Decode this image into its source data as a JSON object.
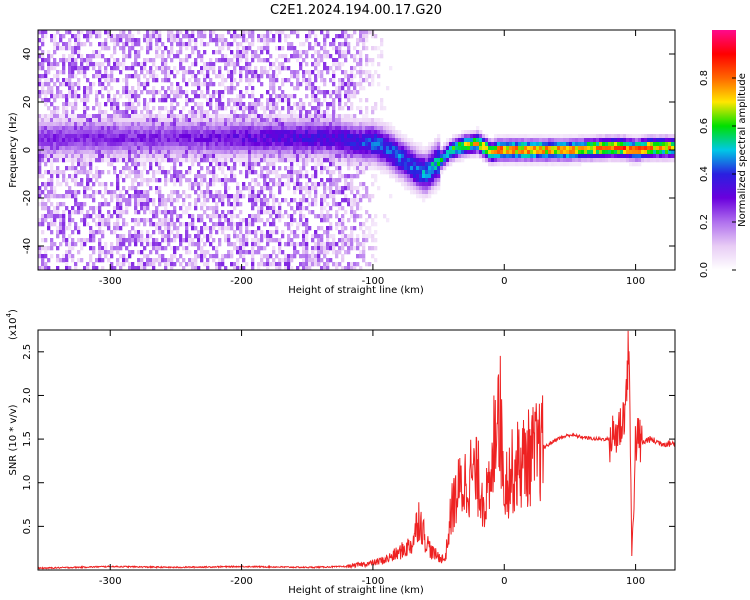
{
  "title": "C2E1.2024.194.00.17.G20",
  "chart_data": [
    {
      "type": "heatmap",
      "title": "C2E1.2024.194.00.17.G20",
      "xlabel": "Height of straight line (km)",
      "ylabel": "Frequency (Hz)",
      "xlim": [
        -355,
        130
      ],
      "ylim": [
        -50,
        50
      ],
      "x_ticks": [
        -300,
        -200,
        -100,
        0,
        100
      ],
      "y_ticks": [
        -40,
        -20,
        0,
        20,
        40
      ],
      "colorbar": {
        "label": "Normalized spectral amplitude",
        "ticks": [
          0.0,
          0.2,
          0.4,
          0.6,
          0.8
        ],
        "range": [
          0,
          1
        ],
        "colormap": [
          "#ffffff",
          "#e8ccf5",
          "#b070ee",
          "#6a00dd",
          "#2a20e0",
          "#00c8e6",
          "#00e000",
          "#ffe600",
          "#ff6600",
          "#ff0000",
          "#ff0a8c"
        ]
      },
      "ridge": {
        "x": [
          -300,
          -250,
          -200,
          -150,
          -130,
          -110,
          -100,
          -90,
          -80,
          -70,
          -60,
          -50,
          -40,
          -30,
          -20,
          -15,
          -10,
          -5,
          0,
          50,
          80,
          90,
          100,
          110,
          130
        ],
        "y": [
          5,
          5,
          5,
          5,
          5,
          3,
          3,
          1,
          -3,
          -7,
          -10,
          -5,
          0,
          2,
          3,
          1,
          -1,
          0,
          0,
          0,
          1,
          1,
          0,
          1,
          1
        ],
        "peak_amplitude": [
          0.3,
          0.3,
          0.35,
          0.4,
          0.4,
          0.45,
          0.5,
          0.5,
          0.5,
          0.5,
          0.55,
          0.6,
          0.65,
          0.75,
          0.8,
          0.8,
          0.85,
          0.9,
          0.9,
          0.85,
          0.85,
          0.9,
          0.9,
          0.9,
          0.8
        ]
      },
      "noise_region_x": [
        -355,
        -120
      ]
    },
    {
      "type": "line",
      "xlabel": "Height of straight line (km)",
      "ylabel": "SNR (10 * v/v)",
      "y_scale_label": "(x10",
      "y_scale_exponent": "4",
      "xlim": [
        -355,
        130
      ],
      "ylim": [
        0,
        2.75
      ],
      "x_ticks": [
        -300,
        -200,
        -100,
        0,
        100
      ],
      "y_ticks": [
        0.5,
        1.0,
        1.5,
        2.0,
        2.5
      ],
      "series": [
        {
          "color": "#ee2222",
          "x": [
            -355,
            -300,
            -250,
            -200,
            -150,
            -120,
            -100,
            -90,
            -80,
            -70,
            -65,
            -60,
            -55,
            -50,
            -45,
            -40,
            -35,
            -30,
            -25,
            -20,
            -15,
            -10,
            -5,
            0,
            10,
            20,
            30,
            40,
            50,
            60,
            70,
            80,
            85,
            90,
            93,
            95,
            97,
            100,
            105,
            110,
            120,
            130
          ],
          "y": [
            0.02,
            0.04,
            0.03,
            0.04,
            0.03,
            0.04,
            0.08,
            0.12,
            0.2,
            0.3,
            0.62,
            0.35,
            0.2,
            0.15,
            0.12,
            0.7,
            0.9,
            1.0,
            1.1,
            1.05,
            0.8,
            0.9,
            2.2,
            1.0,
            1.2,
            1.3,
            1.4,
            1.5,
            1.55,
            1.52,
            1.5,
            1.5,
            1.55,
            1.7,
            2.0,
            2.7,
            0.1,
            1.5,
            1.45,
            1.5,
            1.45,
            1.45
          ]
        }
      ]
    }
  ]
}
